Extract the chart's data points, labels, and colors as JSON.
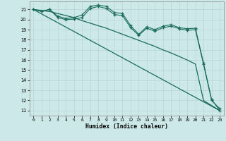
{
  "xlabel": "Humidex (Indice chaleur)",
  "bg_color": "#cce8e8",
  "grid_color": "#b8d4d4",
  "line_color": "#1a6b5a",
  "xlim": [
    -0.5,
    23.5
  ],
  "ylim": [
    10.5,
    21.8
  ],
  "yticks": [
    11,
    12,
    13,
    14,
    15,
    16,
    17,
    18,
    19,
    20,
    21
  ],
  "xticks": [
    0,
    1,
    2,
    3,
    4,
    5,
    6,
    7,
    8,
    9,
    10,
    11,
    12,
    13,
    14,
    15,
    16,
    17,
    18,
    19,
    20,
    21,
    22,
    23
  ],
  "line1_x": [
    0,
    1,
    2,
    3,
    4,
    5,
    6,
    7,
    8,
    9,
    10,
    11,
    12,
    13,
    14,
    15,
    16,
    17,
    18,
    19,
    20,
    21,
    22,
    23
  ],
  "line1_y": [
    21.0,
    20.85,
    21.0,
    20.35,
    20.1,
    20.2,
    20.45,
    21.3,
    21.45,
    21.3,
    20.7,
    20.6,
    19.4,
    18.55,
    19.3,
    19.0,
    19.35,
    19.5,
    19.2,
    19.1,
    19.15,
    15.7,
    12.1,
    11.0
  ],
  "line2_x": [
    0,
    1,
    2,
    3,
    4,
    5,
    6,
    7,
    8,
    9,
    10,
    11,
    12,
    13,
    14,
    15,
    16,
    17,
    18,
    19,
    20,
    21,
    22,
    23
  ],
  "line2_y": [
    21.0,
    20.8,
    21.0,
    20.2,
    20.0,
    20.05,
    20.2,
    21.1,
    21.3,
    21.1,
    20.5,
    20.4,
    19.2,
    18.45,
    19.15,
    18.85,
    19.2,
    19.35,
    19.1,
    18.95,
    19.0,
    15.6,
    12.0,
    11.2
  ],
  "line3_x": [
    0,
    23
  ],
  "line3_y": [
    21.0,
    11.0
  ],
  "line4_x": [
    0,
    1,
    2,
    3,
    4,
    5,
    6,
    7,
    8,
    9,
    10,
    11,
    12,
    13,
    14,
    15,
    16,
    17,
    18,
    19,
    20,
    21,
    22,
    23
  ],
  "line4_y": [
    21.0,
    20.9,
    20.8,
    20.6,
    20.4,
    20.2,
    19.9,
    19.65,
    19.4,
    19.15,
    18.85,
    18.55,
    18.25,
    17.95,
    17.65,
    17.35,
    17.0,
    16.7,
    16.35,
    16.0,
    15.6,
    12.0,
    11.5,
    11.0
  ]
}
